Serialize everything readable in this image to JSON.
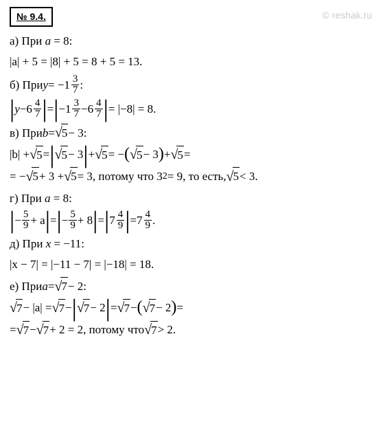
{
  "problem_number": "№ 9.4.",
  "watermark": "© reshak.ru",
  "sections": {
    "a": {
      "header_prefix": "а) При ",
      "header_var": "a",
      "header_eq": " = 8:",
      "line1": "|a| + 5 = |8| + 5 = 8 + 5 = 13."
    },
    "b": {
      "header_prefix": "б) При ",
      "header_var": "y",
      "header_eq": " = −",
      "mixed1_whole": "1",
      "mixed1_num": "3",
      "mixed1_den": "7",
      "colon": ":",
      "expr_var": "y",
      "minus": " − ",
      "mixed2_whole": "6",
      "mixed2_num": "4",
      "mixed2_den": "7",
      "eq1": " = ",
      "neg": "−",
      "result": " = |−8| = 8."
    },
    "c": {
      "header_prefix": "в) При ",
      "header_var": "b",
      "header_eq": " = ",
      "sqrt_val": "5",
      "minus3": " − 3:",
      "line1_start": "|b| + ",
      "eq": " = ",
      "minus3b": " − 3",
      "plus": " + ",
      "neg_paren": " = −",
      "line2_start": "= −",
      "plus3": " + 3 + ",
      "eq3": " = 3,   потому что 3",
      "sq": "2",
      "eq9": " = 9, то есть, ",
      "lt3": " < 3."
    },
    "d": {
      "header_prefix": "г) При ",
      "header_var": "a",
      "header_eq": " = 8:",
      "neg": "−",
      "frac_num": "5",
      "frac_den": "9",
      "plus_a": " + a",
      "eq": " = ",
      "plus8": " + 8",
      "mixed_whole": "7",
      "mixed_num": "4",
      "mixed_den": "9",
      "period": "."
    },
    "e": {
      "header_prefix": "д) При ",
      "header_var": "x",
      "header_eq": " = −11:",
      "line1": "|x − 7| = |−11 − 7| = |−18| = 18."
    },
    "f": {
      "header_prefix": "е) При ",
      "header_var": "a",
      "header_eq": " = ",
      "sqrt_val": "7",
      "minus2": " − 2:",
      "line1_start_minus": " − |a| = ",
      "minus": " − ",
      "minus2b": " − 2",
      "eq": " = ",
      "line2_start": "= ",
      "plus2": " + 2 = 2,   потому что ",
      "gt2": " > 2."
    }
  }
}
